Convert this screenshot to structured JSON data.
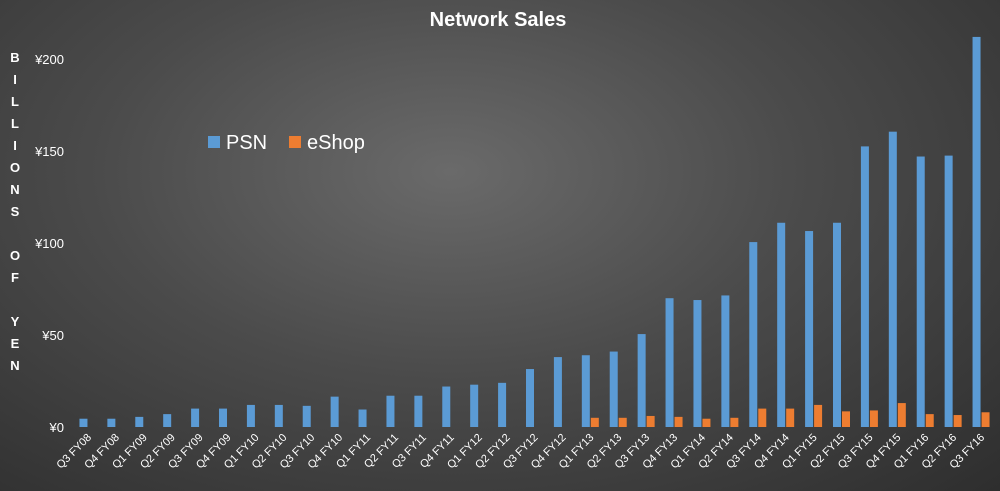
{
  "chart_data": {
    "type": "bar",
    "title": "Network Sales",
    "ylabel": "BILLIONS OF YEN",
    "ylim": [
      0,
      210
    ],
    "yticks": [
      0,
      50,
      100,
      150,
      200
    ],
    "ytick_labels": [
      "¥0",
      "¥50",
      "¥100",
      "¥150",
      "¥200"
    ],
    "legend_position": "upper-left",
    "categories": [
      "Q3 FY08",
      "Q4 FY08",
      "Q1 FY09",
      "Q2 FY09",
      "Q3 FY09",
      "Q4 FY09",
      "Q1 FY10",
      "Q2 FY10",
      "Q3 FY10",
      "Q4 FY10",
      "Q1 FY11",
      "Q2 FY11",
      "Q3 FY11",
      "Q4 FY11",
      "Q1 FY12",
      "Q2 FY12",
      "Q3 FY12",
      "Q4 FY12",
      "Q1 FY13",
      "Q2 FY13",
      "Q3 FY13",
      "Q4 FY13",
      "Q1 FY14",
      "Q2 FY14",
      "Q3 FY14",
      "Q4 FY14",
      "Q1 FY15",
      "Q2 FY15",
      "Q3 FY15",
      "Q4 FY15",
      "Q1 FY16",
      "Q2 FY16",
      "Q3 FY16"
    ],
    "series": [
      {
        "name": "PSN",
        "color": "#5b9bd5",
        "values": [
          4.5,
          4.5,
          5.5,
          7,
          10,
          10,
          12,
          12,
          11.5,
          16.5,
          9.5,
          17,
          17,
          22,
          23,
          24,
          31.5,
          38,
          39,
          41,
          50.5,
          70,
          69,
          71.5,
          100.5,
          111,
          106.5,
          111,
          152.5,
          160.5,
          147,
          147.5,
          212
        ]
      },
      {
        "name": "eShop",
        "color": "#ed7d31",
        "values": [
          0,
          0,
          0,
          0,
          0,
          0,
          0,
          0,
          0,
          0,
          0,
          0,
          0,
          0,
          0,
          0,
          0,
          0,
          5,
          5,
          6,
          5.5,
          4.5,
          5,
          10,
          10,
          12,
          8.5,
          9,
          13,
          7,
          6.5,
          8
        ]
      }
    ]
  }
}
